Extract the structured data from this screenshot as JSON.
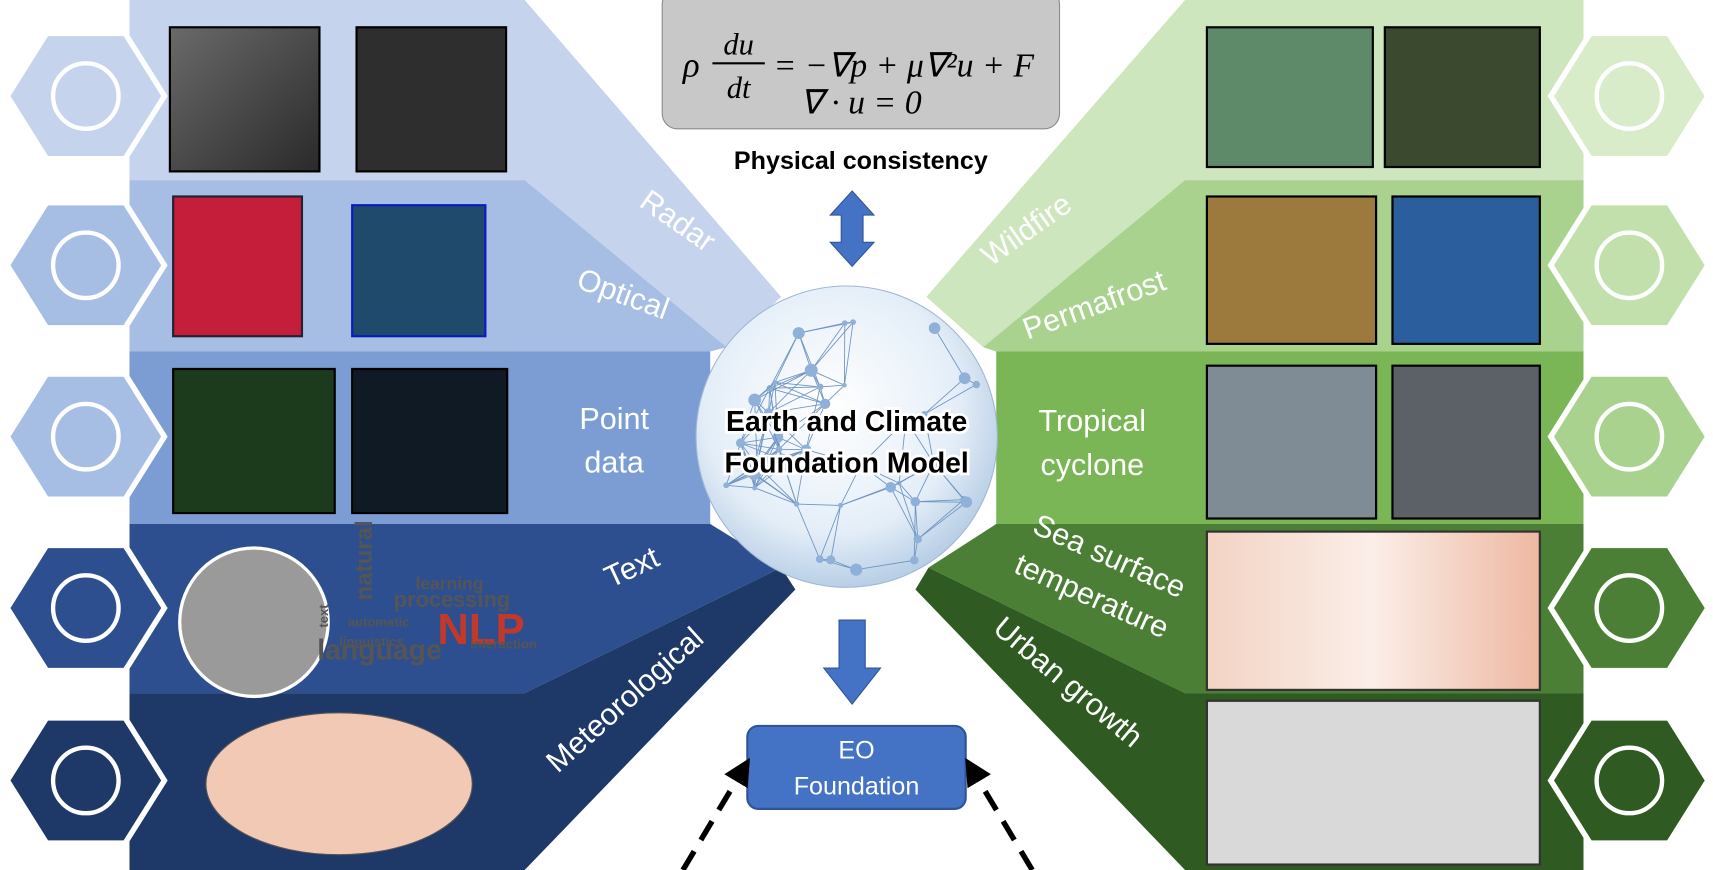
{
  "equation": {
    "rho": "ρ",
    "numerator": "du",
    "denominator": "dt",
    "rhs": "= −∇p + μ∇²u + F",
    "line2": "∇ · u = 0"
  },
  "physical_consistency": "Physical consistency",
  "center": {
    "lines": [
      "Earth and Climate",
      "Foundation Model"
    ]
  },
  "eo_foundation": {
    "lines": [
      "EO",
      "Foundation"
    ]
  },
  "left_modalities": [
    {
      "lines": [
        "Radar"
      ]
    },
    {
      "lines": [
        "Optical"
      ]
    },
    {
      "lines": [
        "Point",
        "data"
      ]
    },
    {
      "lines": [
        "Text"
      ]
    },
    {
      "lines": [
        "Meteorological"
      ]
    }
  ],
  "right_applications": [
    {
      "lines": [
        "Wildfire"
      ]
    },
    {
      "lines": [
        "Permafrost"
      ]
    },
    {
      "lines": [
        "Tropical",
        "cyclone"
      ]
    },
    {
      "lines": [
        "Sea surface",
        "temperature"
      ]
    },
    {
      "lines": [
        "Urban growth"
      ]
    }
  ],
  "word_cloud": [
    "learning",
    "processing",
    "natural",
    "NLP",
    "language",
    "interaction",
    "text",
    "automatic",
    "linguistics"
  ]
}
